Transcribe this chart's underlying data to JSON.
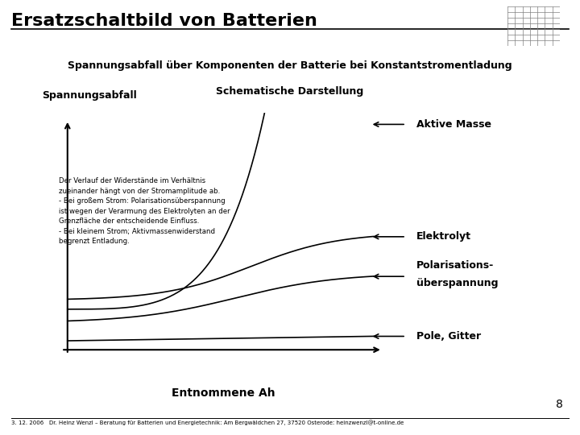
{
  "title": "Ersatzschaltbild von Batterien",
  "subtitle1": "Spannungsabfall über Komponenten der Batterie bei Konstantstromentladung",
  "subtitle2": "Schematische Darstellung",
  "ylabel": "Spannungsabfall",
  "xlabel": "Entnommene Ah",
  "bg_color": "#ffffff",
  "line_color": "#000000",
  "annotations": [
    "Der Verlauf der Widerstände im Verhältnis",
    "zueinander hängt von der Stromamplitude ab.",
    "- Bei großem Strom: Polarisationsüberspannung",
    "ist wegen der Verarmung des Elektrolyten an der",
    "Grenzfläche der entscheidende Einfluss.",
    "- Bei kleinem Strom; Aktivmassenwiderstand",
    "begrenzt Entladung."
  ],
  "labels": {
    "aktive_masse": "Aktive Masse",
    "elektrolyt": "Elektrolyt",
    "polarisation": [
      "Polarisations-",
      "überspannung"
    ],
    "pole_gitter": "Pole, Gitter"
  },
  "footer_date": "3. 12. 2006",
  "footer_text": "Dr. Heinz Wenzl – Beratung für Batterien und Energietechnik: Am Bergwäldchen 27, 37520 Osterode: heinzwenzl@t-online.de",
  "page_number": "8"
}
